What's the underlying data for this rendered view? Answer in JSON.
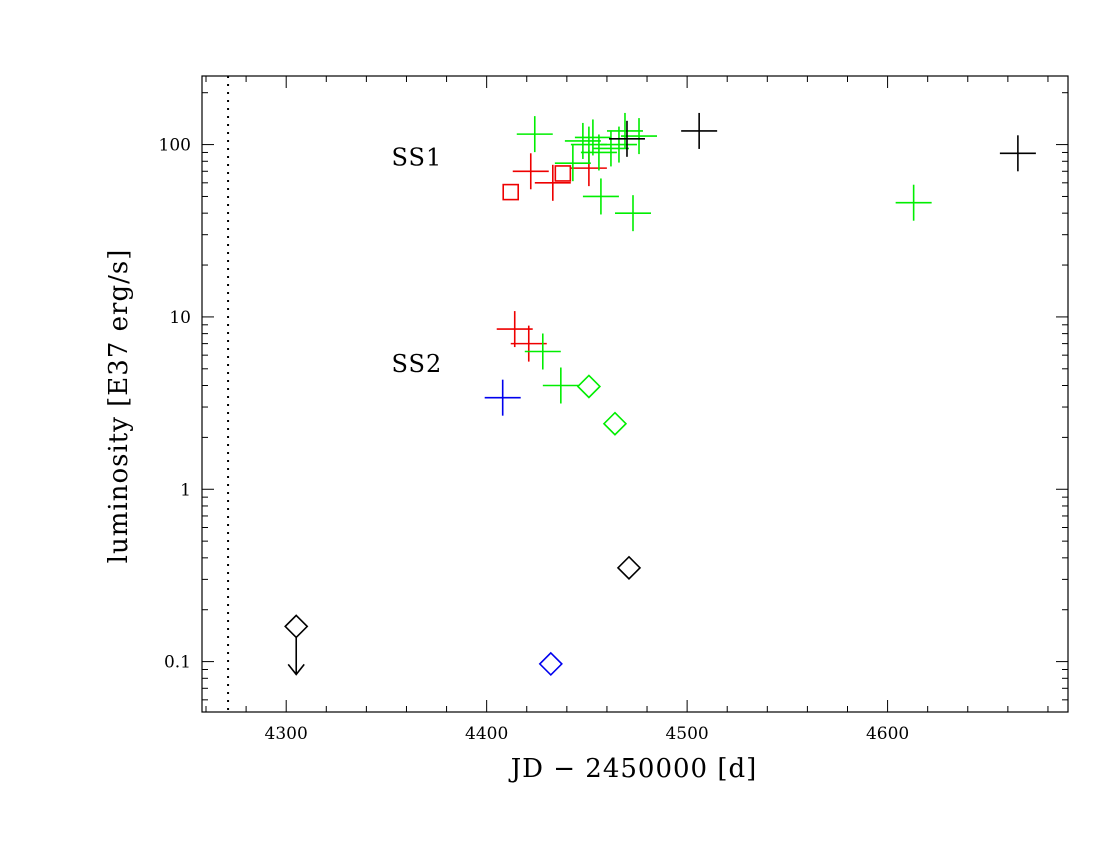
{
  "chart_data": {
    "type": "scatter",
    "title": "",
    "xlabel": "JD − 2450000 [d]",
    "ylabel": "luminosity [E37 erg/s]",
    "xlim": [
      4258,
      4690
    ],
    "ylim": [
      0.051,
      250
    ],
    "yscale": "log",
    "grid": false,
    "legend": "none",
    "x_ticks": [
      {
        "value": 4300,
        "label": "4300"
      },
      {
        "value": 4400,
        "label": "4400"
      },
      {
        "value": 4500,
        "label": "4500"
      },
      {
        "value": 4600,
        "label": "4600"
      }
    ],
    "y_ticks": [
      {
        "value": 0.1,
        "label": "0.1"
      },
      {
        "value": 1,
        "label": "1"
      },
      {
        "value": 10,
        "label": "10"
      },
      {
        "value": 100,
        "label": "100"
      }
    ],
    "reference_lines": [
      {
        "axis": "x",
        "value": 4271,
        "style": "dotted",
        "color": "#000000"
      }
    ],
    "annotations": [
      {
        "text": "SS1",
        "x": 4365,
        "y": 85
      },
      {
        "text": "SS2",
        "x": 4365,
        "y": 5.4
      }
    ],
    "colors": {
      "black": "#000000",
      "red": "#ee0000",
      "green": "#00ee00",
      "blue": "#0000ee"
    },
    "points": [
      {
        "x": 4305,
        "y": 0.16,
        "marker": "diamond",
        "color": "black",
        "upper_limit": true
      },
      {
        "x": 4471,
        "y": 0.35,
        "marker": "diamond",
        "color": "black"
      },
      {
        "x": 4432,
        "y": 0.097,
        "marker": "diamond",
        "color": "blue"
      },
      {
        "x": 4451,
        "y": 3.95,
        "marker": "diamond",
        "color": "green"
      },
      {
        "x": 4464,
        "y": 2.4,
        "marker": "diamond",
        "color": "green"
      },
      {
        "x": 4412,
        "y": 53,
        "marker": "square",
        "color": "red"
      },
      {
        "x": 4438,
        "y": 68,
        "marker": "square",
        "color": "red"
      },
      {
        "x": 4408,
        "y": 3.4,
        "marker": "cross",
        "color": "blue"
      },
      {
        "x": 4414,
        "y": 8.5,
        "marker": "cross",
        "color": "red"
      },
      {
        "x": 4421,
        "y": 7.0,
        "marker": "cross",
        "color": "red"
      },
      {
        "x": 4422,
        "y": 70,
        "marker": "cross",
        "color": "red"
      },
      {
        "x": 4433,
        "y": 60,
        "marker": "cross",
        "color": "red"
      },
      {
        "x": 4451,
        "y": 73,
        "marker": "cross",
        "color": "red"
      },
      {
        "x": 4428,
        "y": 6.3,
        "marker": "cross",
        "color": "green"
      },
      {
        "x": 4437,
        "y": 4.0,
        "marker": "cross",
        "color": "green"
      },
      {
        "x": 4424,
        "y": 115,
        "marker": "cross",
        "color": "green"
      },
      {
        "x": 4443,
        "y": 78,
        "marker": "cross",
        "color": "green"
      },
      {
        "x": 4448,
        "y": 105,
        "marker": "cross",
        "color": "green"
      },
      {
        "x": 4451,
        "y": 100,
        "marker": "cross",
        "color": "green"
      },
      {
        "x": 4453,
        "y": 110,
        "marker": "cross",
        "color": "green"
      },
      {
        "x": 4456,
        "y": 90,
        "marker": "cross",
        "color": "green"
      },
      {
        "x": 4457,
        "y": 50,
        "marker": "cross",
        "color": "green"
      },
      {
        "x": 4462,
        "y": 95,
        "marker": "cross",
        "color": "green"
      },
      {
        "x": 4466,
        "y": 100,
        "marker": "cross",
        "color": "green"
      },
      {
        "x": 4469,
        "y": 120,
        "marker": "cross",
        "color": "green"
      },
      {
        "x": 4473,
        "y": 40,
        "marker": "cross",
        "color": "green"
      },
      {
        "x": 4476,
        "y": 112,
        "marker": "cross",
        "color": "green"
      },
      {
        "x": 4613,
        "y": 46,
        "marker": "cross",
        "color": "green"
      },
      {
        "x": 4470,
        "y": 108,
        "marker": "cross",
        "color": "black"
      },
      {
        "x": 4506,
        "y": 120,
        "marker": "cross",
        "color": "black"
      },
      {
        "x": 4665,
        "y": 89,
        "marker": "cross",
        "color": "black"
      }
    ]
  }
}
